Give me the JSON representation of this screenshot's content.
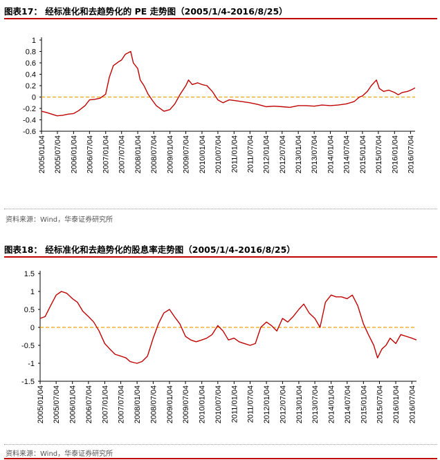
{
  "figures": [
    {
      "title": "图表17：  经标准化和去趋势化的 PE 走势图（2005/1/4-2016/8/25）",
      "source": "资料来源：Wind，华泰证券研究所"
    },
    {
      "title": "图表18：  经标准化和去趋势化的股息率走势图（2005/1/4-2016/8/25）",
      "source": "资料来源：Wind，华泰证券研究所"
    }
  ],
  "colors": {
    "line": "#c00000",
    "zero_line": "#f0a500",
    "rule": "#c00000"
  },
  "chart_data": [
    {
      "type": "line",
      "title": "经标准化和去趋势化的 PE 走势图（2005/1/4-2016/8/25）",
      "xlabel": "",
      "ylabel": "",
      "ylim": [
        -0.6,
        1
      ],
      "y_ticks": [
        -0.6,
        -0.4,
        -0.2,
        0,
        0.2,
        0.4,
        0.6,
        0.8,
        1
      ],
      "x_ticks": [
        "2005/01/04",
        "2005/07/04",
        "2006/01/04",
        "2006/07/04",
        "2007/01/04",
        "2007/07/04",
        "2008/01/04",
        "2008/07/04",
        "2009/01/04",
        "2009/07/04",
        "2010/01/04",
        "2010/07/04",
        "2011/01/04",
        "2011/07/04",
        "2012/01/04",
        "2012/07/04",
        "2013/01/04",
        "2013/07/04",
        "2014/01/04",
        "2014/07/04",
        "2015/01/04",
        "2015/07/04",
        "2016/01/04",
        "2016/07/04"
      ],
      "x_range": [
        "2005/01/04",
        "2016/08/25"
      ],
      "reference_line": 0,
      "series": [
        {
          "x": [
            "2005/01/04",
            "2005/03/01",
            "2005/05/01",
            "2005/07/01",
            "2005/09/01",
            "2005/11/01",
            "2006/01/04",
            "2006/03/01",
            "2006/05/15",
            "2006/07/04",
            "2006/09/01",
            "2006/11/01",
            "2007/01/04",
            "2007/02/15",
            "2007/04/01",
            "2007/06/01",
            "2007/07/04",
            "2007/08/15",
            "2007/10/16",
            "2007/11/15",
            "2008/01/04",
            "2008/02/01",
            "2008/03/15",
            "2008/05/01",
            "2008/06/15",
            "2008/08/01",
            "2008/10/28",
            "2009/01/04",
            "2009/03/01",
            "2009/05/01",
            "2009/07/04",
            "2009/08/04",
            "2009/09/15",
            "2009/11/15",
            "2010/01/04",
            "2010/03/01",
            "2010/05/01",
            "2010/07/04",
            "2010/09/01",
            "2010/11/08",
            "2011/01/04",
            "2011/04/01",
            "2011/07/04",
            "2011/10/01",
            "2012/01/04",
            "2012/04/01",
            "2012/07/04",
            "2012/10/01",
            "2013/01/04",
            "2013/04/01",
            "2013/07/04",
            "2013/10/01",
            "2014/01/04",
            "2014/04/01",
            "2014/07/04",
            "2014/10/01",
            "2014/12/01",
            "2015/01/04",
            "2015/03/01",
            "2015/04/15",
            "2015/06/12",
            "2015/07/15",
            "2015/09/01",
            "2015/11/01",
            "2016/01/04",
            "2016/02/15",
            "2016/04/01",
            "2016/06/01",
            "2016/07/04",
            "2016/08/25"
          ],
          "y": [
            -0.25,
            -0.27,
            -0.3,
            -0.33,
            -0.32,
            -0.3,
            -0.29,
            -0.24,
            -0.15,
            -0.05,
            -0.04,
            -0.02,
            0.05,
            0.35,
            0.55,
            0.62,
            0.65,
            0.75,
            0.8,
            0.6,
            0.5,
            0.3,
            0.2,
            0.05,
            -0.05,
            -0.15,
            -0.25,
            -0.22,
            -0.12,
            0.05,
            0.2,
            0.3,
            0.22,
            0.25,
            0.22,
            0.2,
            0.1,
            -0.05,
            -0.1,
            -0.05,
            -0.06,
            -0.08,
            -0.1,
            -0.13,
            -0.17,
            -0.16,
            -0.17,
            -0.18,
            -0.15,
            -0.15,
            -0.16,
            -0.14,
            -0.15,
            -0.14,
            -0.12,
            -0.08,
            0,
            0.02,
            0.1,
            0.2,
            0.3,
            0.15,
            0.1,
            0.12,
            0.08,
            0.04,
            0.08,
            0.1,
            0.12,
            0.16
          ]
        }
      ]
    },
    {
      "type": "line",
      "title": "经标准化和去趋势化的股息率走势图（2005/1/4-2016/8/25）",
      "xlabel": "",
      "ylabel": "",
      "ylim": [
        -1.5,
        1.5
      ],
      "y_ticks": [
        -1.5,
        -1,
        -0.5,
        0,
        0.5,
        1,
        1.5
      ],
      "x_ticks": [
        "2005/01/04",
        "2005/07/04",
        "2006/01/04",
        "2006/07/04",
        "2007/01/04",
        "2007/07/04",
        "2008/01/04",
        "2008/07/04",
        "2009/01/04",
        "2009/07/04",
        "2010/01/04",
        "2010/07/04",
        "2011/01/04",
        "2011/07/04",
        "2012/01/04",
        "2012/07/04",
        "2013/01/04",
        "2013/07/04",
        "2014/01/04",
        "2014/07/04",
        "2015/01/04",
        "2015/07/04",
        "2016/01/04",
        "2016/07/04"
      ],
      "x_range": [
        "2005/01/04",
        "2016/08/25"
      ],
      "reference_line": 0,
      "series": [
        {
          "x": [
            "2005/01/04",
            "2005/03/01",
            "2005/05/01",
            "2005/07/04",
            "2005/09/01",
            "2005/11/01",
            "2006/01/04",
            "2006/03/01",
            "2006/05/01",
            "2006/07/04",
            "2006/09/01",
            "2006/11/01",
            "2007/01/04",
            "2007/03/01",
            "2007/05/01",
            "2007/07/04",
            "2007/09/01",
            "2007/10/16",
            "2007/12/01",
            "2008/01/04",
            "2008/03/01",
            "2008/05/01",
            "2008/07/04",
            "2008/09/01",
            "2008/11/01",
            "2009/01/04",
            "2009/03/01",
            "2009/05/01",
            "2009/07/04",
            "2009/09/01",
            "2009/11/01",
            "2010/01/04",
            "2010/03/01",
            "2010/05/01",
            "2010/07/04",
            "2010/09/01",
            "2010/11/01",
            "2011/01/04",
            "2011/03/01",
            "2011/05/01",
            "2011/07/04",
            "2011/09/01",
            "2011/11/01",
            "2012/01/04",
            "2012/03/01",
            "2012/05/01",
            "2012/07/04",
            "2012/09/01",
            "2012/11/01",
            "2013/01/04",
            "2013/03/01",
            "2013/05/01",
            "2013/07/04",
            "2013/09/01",
            "2013/11/01",
            "2014/01/04",
            "2014/03/01",
            "2014/05/01",
            "2014/07/04",
            "2014/09/01",
            "2014/11/01",
            "2015/01/04",
            "2015/03/01",
            "2015/05/01",
            "2015/06/12",
            "2015/08/01",
            "2015/09/15",
            "2015/11/01",
            "2016/01/04",
            "2016/03/01",
            "2016/05/01",
            "2016/07/04",
            "2016/08/25"
          ],
          "y": [
            0.25,
            0.3,
            0.6,
            0.9,
            1.0,
            0.95,
            0.8,
            0.7,
            0.45,
            0.3,
            0.15,
            -0.1,
            -0.45,
            -0.6,
            -0.75,
            -0.8,
            -0.85,
            -0.95,
            -0.98,
            -1.0,
            -0.95,
            -0.8,
            -0.3,
            0.1,
            0.4,
            0.5,
            0.3,
            0.1,
            -0.25,
            -0.35,
            -0.4,
            -0.35,
            -0.3,
            -0.2,
            0.05,
            -0.1,
            -0.35,
            -0.3,
            -0.4,
            -0.45,
            -0.5,
            -0.45,
            0.0,
            0.15,
            0.05,
            -0.1,
            0.25,
            0.15,
            0.3,
            0.5,
            0.65,
            0.4,
            0.25,
            0.0,
            0.7,
            0.9,
            0.85,
            0.85,
            0.8,
            0.9,
            0.6,
            0.1,
            -0.2,
            -0.5,
            -0.85,
            -0.6,
            -0.5,
            -0.3,
            -0.45,
            -0.2,
            -0.25,
            -0.3,
            -0.35
          ]
        }
      ]
    }
  ]
}
